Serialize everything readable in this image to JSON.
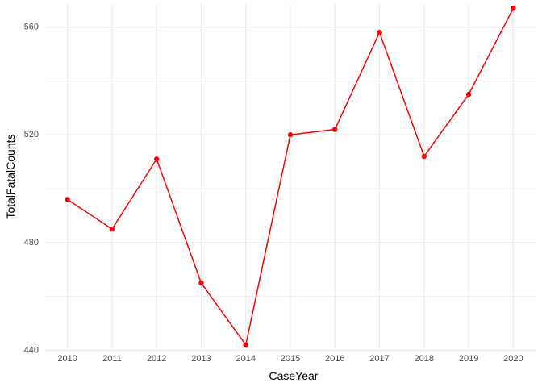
{
  "chart_data": {
    "type": "line",
    "title": "",
    "xlabel": "CaseYear",
    "ylabel": "TotalFatalCounts",
    "x": [
      2010,
      2011,
      2012,
      2013,
      2014,
      2015,
      2016,
      2017,
      2018,
      2019,
      2020
    ],
    "series": [
      {
        "color": "#ff0000",
        "values": [
          496,
          485,
          511,
          465,
          442,
          520,
          522,
          558,
          512,
          535,
          567
        ]
      }
    ],
    "xlim": [
      2009.5,
      2020.5
    ],
    "ylim": [
      440.75,
      568.25
    ],
    "y_ticks": [
      440,
      480,
      520,
      560
    ],
    "y_minor_ticks": [
      460,
      500,
      540
    ],
    "x_tick_labels": [
      "2010",
      "2011",
      "2012",
      "2013",
      "2014",
      "2015",
      "2016",
      "2017",
      "2018",
      "2019",
      "2020"
    ],
    "y_tick_labels": [
      "440",
      "480",
      "520",
      "560"
    ],
    "grid": true,
    "legend": "none",
    "background": "#ffffff",
    "grid_color": "#ebebeb"
  }
}
